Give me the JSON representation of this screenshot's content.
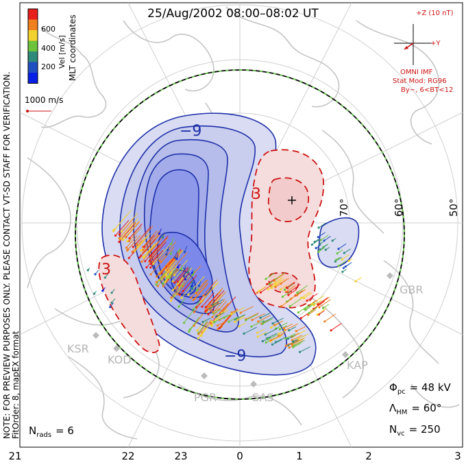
{
  "title": "25/Aug/2002 08:00–08:02 UT",
  "velocity_colorbar": {
    "label": "Vel [m/s]",
    "ticks": [
      "600",
      "400",
      "200"
    ],
    "colors": [
      "#e8201c",
      "#f07f1e",
      "#f2d22e",
      "#6cc43c",
      "#2e8a7a",
      "#1f4fc2",
      "#0a1fe6"
    ]
  },
  "coordinate_label": "MLT coordinates",
  "reference_vector": "1000 m/s",
  "side_note": "NOTE: FOR PREVIEW PURPOSES ONLY. PLEASE CONTACT VT-SD STAFF FOR VERIFICATION.",
  "fit_order": "FitOrder: 8, mapEX format",
  "imf": {
    "z_label": "+Z (10 nT)",
    "y_label": "+Y",
    "source": "OMNI IMF",
    "stat_mod": "Stat Mod: RG96",
    "condition": "By−, 6<BT<12",
    "color": "#cc1111"
  },
  "contour_labels": {
    "negative": "−9",
    "positive": "3"
  },
  "latitude_labels": [
    "70°",
    "60°",
    "50°"
  ],
  "stations": [
    "GBR",
    "KAP",
    "SAS",
    "PGR",
    "KOD",
    "KSR"
  ],
  "mlt_ticks": [
    "21",
    "22",
    "23",
    "0",
    "1",
    "2",
    "3"
  ],
  "stats": {
    "phi_symbol": "Φ",
    "phi_sub": "pc",
    "phi_value": "= 48 kV",
    "lambda_symbol": "Λ",
    "lambda_sub": "HM",
    "lambda_value": "= 60°",
    "nvc_symbol": "N",
    "nvc_sub": "vc",
    "nvc_value": "= 250",
    "nrads_symbol": "N",
    "nrads_sub": "rads",
    "nrads_value": "= 6"
  },
  "colors": {
    "negative_contour": "#1c2fa8",
    "positive_contour": "#cc1111",
    "negative_fill": "#c9cdee",
    "positive_fill": "#f6dddd",
    "grid": "#cfcfcf",
    "coast": "#c4c4c4"
  }
}
